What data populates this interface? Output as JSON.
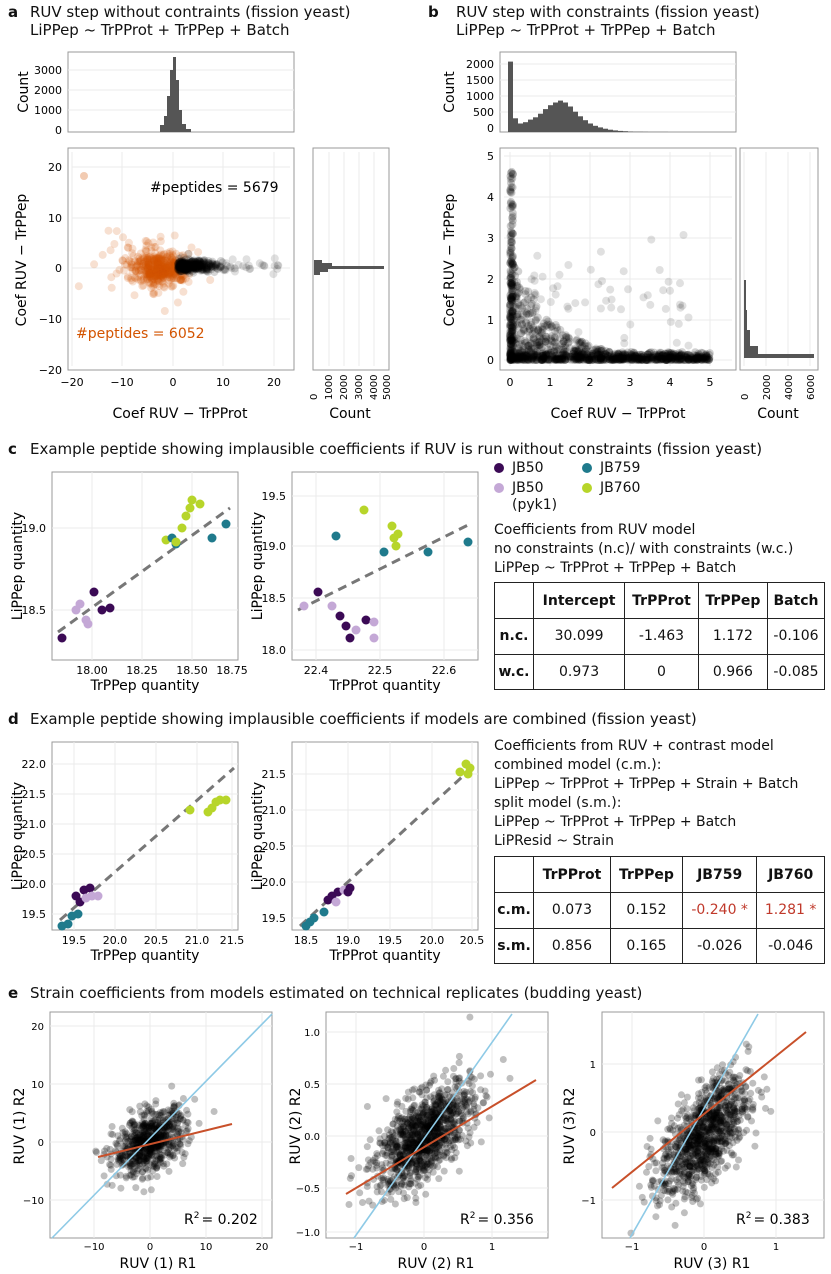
{
  "panel_a": {
    "letter": "a",
    "title1": "RUV step without contraints (fission yeast)",
    "title2": "LiPPep ~ TrPProt + TrPPep + Batch",
    "top_y_label": "Count",
    "top_y_ticks": [
      "3000",
      "2000",
      "1000",
      "0"
    ],
    "ylabel": "Coef RUV − TrPPep",
    "xlabel": "Coef RUV − TrPProt",
    "y_ticks": [
      "20",
      "10",
      "0",
      "−10",
      "−20"
    ],
    "x_ticks": [
      "−20",
      "−10",
      "0",
      "10",
      "20"
    ],
    "annot_black": "#peptides = 5679",
    "annot_orange": "#peptides = 6052",
    "right_x_label": "Count",
    "right_x_ticks": [
      "0",
      "1000",
      "2000",
      "3000",
      "4000",
      "5000"
    ]
  },
  "panel_b": {
    "letter": "b",
    "title1": "RUV step with constraints (fission yeast)",
    "title2": "LiPPep ~ TrPProt + TrPPep + Batch",
    "top_y_label": "Count",
    "top_y_ticks": [
      "2000",
      "1500",
      "1000",
      "500",
      "0"
    ],
    "ylabel": "Coef RUV − TrPPep",
    "xlabel": "Coef RUV − TrPProt",
    "y_ticks": [
      "5",
      "4",
      "3",
      "2",
      "1",
      "0"
    ],
    "x_ticks": [
      "0",
      "1",
      "2",
      "3",
      "4",
      "5"
    ],
    "right_x_label": "Count",
    "right_x_ticks": [
      "0",
      "2000",
      "4000",
      "6000"
    ]
  },
  "panel_c": {
    "letter": "c",
    "title": "Example peptide showing implausible coefficients if RUV is run without constraints (fission yeast)",
    "plot1": {
      "ylabel": "LiPPep quantity",
      "xlabel": "TrPPep quantity",
      "y_ticks": [
        "19.0",
        "18.5"
      ],
      "x_ticks": [
        "18.00",
        "18.25",
        "18.50",
        "18.75"
      ]
    },
    "plot2": {
      "ylabel": "LiPPep quantity",
      "xlabel": "TrPProt quantity",
      "y_ticks": [
        "19.5",
        "19.0",
        "18.5",
        "18.0"
      ],
      "x_ticks": [
        "22.4",
        "22.5",
        "22.6"
      ]
    },
    "legend": [
      {
        "label": "JB50",
        "color": "#3b0a55"
      },
      {
        "label": "JB759",
        "color": "#1f7a8c"
      },
      {
        "label": "JB50",
        "sub": "(pyk1)",
        "color": "#c4a8d6"
      },
      {
        "label": "JB760",
        "color": "#b7d52a"
      }
    ],
    "coef_text1": "Coefficients from RUV model",
    "coef_text2": "no constraints (n.c)/ with constraints (w.c.)",
    "coef_text3": "LiPPep ~ TrPProt + TrPPep + Batch",
    "table": {
      "headers": [
        "",
        "Intercept",
        "TrPProt",
        "TrPPep",
        "Batch"
      ],
      "rows": [
        {
          "name": "n.c.",
          "values": [
            "30.099",
            "-1.463",
            "1.172",
            "-0.106"
          ]
        },
        {
          "name": "w.c.",
          "values": [
            "0.973",
            "0",
            "0.966",
            "-0.085"
          ]
        }
      ]
    }
  },
  "panel_d": {
    "letter": "d",
    "title": "Example peptide showing implausible coefficients if models are combined (fission yeast)",
    "plot1": {
      "ylabel": "LiPPep quantity",
      "xlabel": "TrPPep quantity",
      "y_ticks": [
        "22.0",
        "21.5",
        "21.0",
        "20.5",
        "20.0",
        "19.5"
      ],
      "x_ticks": [
        "19.5",
        "20.0",
        "20.5",
        "21.0",
        "21.5"
      ]
    },
    "plot2": {
      "ylabel": "LiPPep quantity",
      "xlabel": "TrPProt quantity",
      "y_ticks": [
        "21.5",
        "21.0",
        "20.5",
        "20.0",
        "19.5"
      ],
      "x_ticks": [
        "18.5",
        "19.0",
        "19.5",
        "20.0",
        "20.5"
      ]
    },
    "text1": "Coefficients from RUV + contrast model",
    "text2": "combined model (c.m.):",
    "text3": "LiPPep ~ TrPProt + TrPPep + Strain + Batch",
    "text4": "split model (s.m.):",
    "text5": "LiPPep ~ TrPProt + TrPPep + Batch",
    "text6": "LiPResid ~ Strain",
    "table": {
      "headers": [
        "",
        "TrPProt",
        "TrPPep",
        "JB759",
        "JB760"
      ],
      "rows": [
        {
          "name": "c.m.",
          "values": [
            "0.073",
            "0.152",
            "-0.240 *",
            "1.281 *"
          ]
        },
        {
          "name": "s.m.",
          "values": [
            "0.856",
            "0.165",
            "-0.026",
            "-0.046"
          ]
        }
      ]
    }
  },
  "panel_e": {
    "letter": "e",
    "title": "Strain coefficients from models estimated on technical replicates (budding yeast)",
    "plots": [
      {
        "ylabel": "RUV (1) R2",
        "xlabel": "RUV (1) R1",
        "r2": "= 0.202",
        "y_ticks": [
          "20",
          "10",
          "0",
          "−10"
        ],
        "x_ticks": [
          "−10",
          "0",
          "10",
          "20"
        ]
      },
      {
        "ylabel": "RUV (2) R2",
        "xlabel": "RUV (2) R1",
        "r2": "= 0.356",
        "y_ticks": [
          "1.0",
          "0.5",
          "0.0",
          "−0.5",
          "−1.0"
        ],
        "x_ticks": [
          "−1",
          "0",
          "1"
        ]
      },
      {
        "ylabel": "RUV (3) R2",
        "xlabel": "RUV (3) R1",
        "r2": "= 0.383",
        "y_ticks": [
          "1",
          "0",
          "−1"
        ],
        "x_ticks": [
          "−1",
          "0",
          "1"
        ]
      }
    ],
    "r2_label": "R",
    "r2_sup": "2"
  },
  "colors": {
    "orange": "#d35400",
    "blue": "#8ecae6",
    "redline": "#c8502a",
    "grid": "#ebebeb"
  }
}
